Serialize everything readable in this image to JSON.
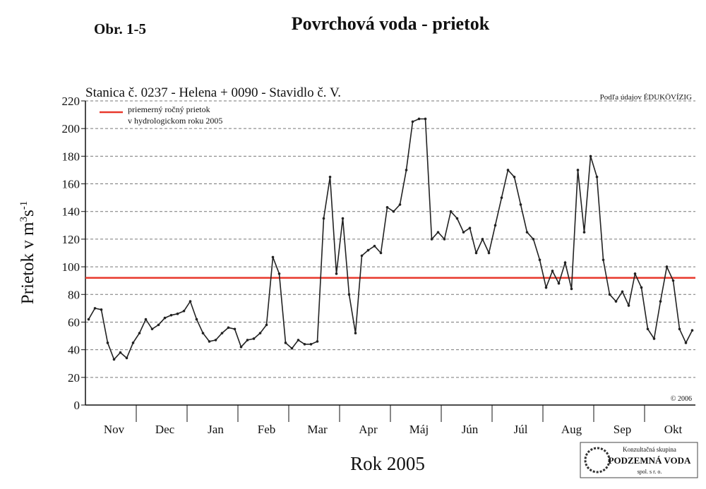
{
  "chart_data": {
    "type": "line",
    "figure_label": "Obr. 1-5",
    "title": "Povrchová voda - prietok",
    "subtitle": "Stanica č. 0237 - Helena + 0090 - Stavidlo č. V.",
    "source": "Podľa údajov ÉDUKÖVÍZIG",
    "copyright": "© 2006",
    "xlabel": "Rok 2005",
    "ylabel_parts": [
      "Prietok v m",
      "3",
      "s",
      "-1"
    ],
    "logo": [
      "Konzultačná skupina",
      "PODZEMNÁ VODA",
      "spol. s r. o."
    ],
    "categories": [
      null,
      null,
      null,
      null,
      "Nov",
      null,
      null,
      null,
      null,
      null,
      null,
      null,
      "Dec",
      null,
      null,
      null,
      null,
      null,
      null,
      null,
      "Jan",
      null,
      null,
      null,
      null,
      null,
      null,
      null,
      "Feb",
      null,
      null,
      null,
      null,
      null,
      null,
      null,
      "Mar",
      null,
      null,
      null,
      null,
      null,
      null,
      null,
      "Apr",
      null,
      null,
      null,
      null,
      null,
      null,
      null,
      "Máj",
      null,
      null,
      null,
      null,
      null,
      null,
      null,
      "Jún",
      null,
      null,
      null,
      null,
      null,
      null,
      null,
      "Júl",
      null,
      null,
      null,
      null,
      null,
      null,
      null,
      "Aug",
      null,
      null,
      null,
      null,
      null,
      null,
      null,
      "Sep",
      null,
      null,
      null,
      null,
      null,
      null,
      null,
      "Okt",
      null,
      null,
      null
    ],
    "series": [
      {
        "color": "#222222",
        "values": [
          62,
          70,
          69,
          45,
          33,
          38,
          34,
          45,
          52,
          62,
          55,
          58,
          63,
          65,
          66,
          68,
          75,
          62,
          52,
          46,
          47,
          52,
          56,
          55,
          42,
          47,
          48,
          52,
          58,
          107,
          95,
          45,
          41,
          47,
          44,
          44,
          46,
          135,
          165,
          95,
          135,
          80,
          52,
          108,
          112,
          115,
          110,
          143,
          140,
          145,
          170,
          205,
          207,
          207,
          120,
          125,
          120,
          140,
          135,
          125,
          128,
          110,
          120,
          110,
          130,
          150,
          170,
          165,
          145,
          125,
          120,
          105,
          85,
          97,
          88,
          103,
          84,
          170,
          125,
          180,
          165,
          105,
          80,
          75,
          82,
          72,
          95,
          85,
          55,
          48,
          75,
          100,
          90,
          55,
          45,
          54
        ]
      }
    ],
    "reference_line": {
      "value": 92,
      "color": "#e8392c",
      "name": [
        "priemerný ročný prietok",
        "v hydrologickom roku 2005"
      ]
    },
    "ylim": [
      0,
      220
    ],
    "yticks": [
      0,
      20,
      40,
      60,
      80,
      100,
      120,
      140,
      160,
      180,
      200,
      220
    ],
    "grid": true
  }
}
